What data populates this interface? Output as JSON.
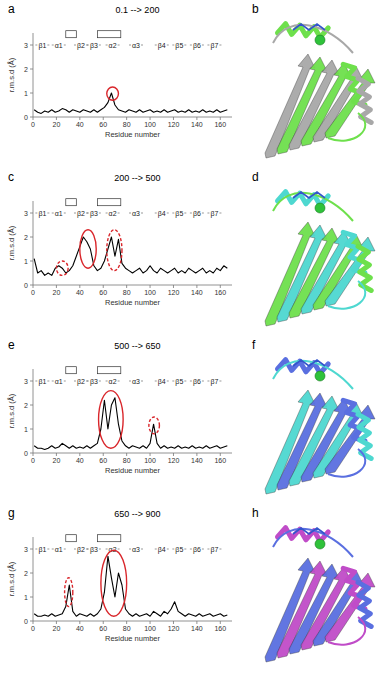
{
  "chart_data": [
    {
      "type": "line",
      "panel_label": "a",
      "title": "0.1 --> 200",
      "x_label": "Residue number",
      "y_label": "r.m.s.d (Å)",
      "color": "#000000",
      "grid": false,
      "xlim": [
        0,
        170
      ],
      "xticks": [
        0,
        20,
        40,
        60,
        80,
        100,
        120,
        140,
        160
      ],
      "ylim": [
        0,
        3.5
      ],
      "yticks": [
        0,
        1,
        2,
        3
      ],
      "x": [
        1,
        4,
        7,
        10,
        13,
        16,
        19,
        22,
        25,
        28,
        31,
        34,
        37,
        40,
        43,
        46,
        49,
        52,
        55,
        58,
        61,
        64,
        67,
        70,
        73,
        76,
        79,
        82,
        85,
        88,
        91,
        94,
        97,
        100,
        103,
        106,
        109,
        112,
        115,
        118,
        121,
        124,
        127,
        130,
        133,
        136,
        139,
        142,
        145,
        148,
        151,
        154,
        157,
        160,
        163,
        166
      ],
      "values": [
        0.3,
        0.2,
        0.15,
        0.25,
        0.2,
        0.3,
        0.2,
        0.25,
        0.35,
        0.3,
        0.2,
        0.3,
        0.25,
        0.2,
        0.3,
        0.25,
        0.2,
        0.3,
        0.2,
        0.3,
        0.4,
        0.6,
        1.0,
        0.5,
        0.3,
        0.25,
        0.2,
        0.3,
        0.25,
        0.2,
        0.3,
        0.2,
        0.25,
        0.3,
        0.2,
        0.25,
        0.2,
        0.3,
        0.2,
        0.25,
        0.3,
        0.2,
        0.25,
        0.2,
        0.3,
        0.2,
        0.25,
        0.2,
        0.3,
        0.2,
        0.25,
        0.2,
        0.3,
        0.2,
        0.25,
        0.3
      ],
      "annotations": [
        {
          "text": "β1",
          "x": 8,
          "y": 3
        },
        {
          "text": "α1",
          "x": 22,
          "y": 3
        },
        {
          "text": "β2",
          "x": 41,
          "y": 3
        },
        {
          "text": "β3",
          "x": 52,
          "y": 3
        },
        {
          "text": "α2",
          "x": 68,
          "y": 3
        },
        {
          "text": "α3",
          "x": 88,
          "y": 3
        },
        {
          "text": "β4",
          "x": 110,
          "y": 3
        },
        {
          "text": "β5",
          "x": 125,
          "y": 3
        },
        {
          "text": "β6",
          "x": 140,
          "y": 3
        },
        {
          "text": "β7",
          "x": 155,
          "y": 3
        }
      ],
      "boxes": [
        {
          "start": 28,
          "end": 37,
          "y": 3.45
        },
        {
          "start": 55,
          "end": 75,
          "y": 3.45
        }
      ],
      "highlights": [
        {
          "x_range": [
            63,
            73
          ],
          "y_range": [
            0.7,
            1.25
          ],
          "dashed": false
        }
      ]
    },
    {
      "type": "line",
      "panel_label": "c",
      "title": "200 --> 500",
      "x_label": "Residue number",
      "y_label": "r.m.s.d (Å)",
      "color": "#000000",
      "grid": false,
      "xlim": [
        0,
        170
      ],
      "xticks": [
        0,
        20,
        40,
        60,
        80,
        100,
        120,
        140,
        160
      ],
      "ylim": [
        0,
        3.5
      ],
      "yticks": [
        0,
        1,
        2,
        3
      ],
      "x": [
        1,
        4,
        7,
        10,
        13,
        16,
        19,
        22,
        25,
        28,
        31,
        34,
        37,
        40,
        43,
        46,
        49,
        52,
        55,
        58,
        61,
        64,
        67,
        70,
        73,
        76,
        79,
        82,
        85,
        88,
        91,
        94,
        97,
        100,
        103,
        106,
        109,
        112,
        115,
        118,
        121,
        124,
        127,
        130,
        133,
        136,
        139,
        142,
        145,
        148,
        151,
        154,
        157,
        160,
        163,
        166
      ],
      "values": [
        1.1,
        0.5,
        0.6,
        0.4,
        0.5,
        0.4,
        0.7,
        0.8,
        0.7,
        0.5,
        0.6,
        0.8,
        1.2,
        1.6,
        2.0,
        1.8,
        1.5,
        0.8,
        0.6,
        0.7,
        1.0,
        1.5,
        2.0,
        1.2,
        1.9,
        0.9,
        0.7,
        0.6,
        0.5,
        0.6,
        0.7,
        0.5,
        0.6,
        0.8,
        0.6,
        0.5,
        0.7,
        0.6,
        0.5,
        0.6,
        0.7,
        0.5,
        0.6,
        0.5,
        0.7,
        0.6,
        0.5,
        0.6,
        0.7,
        0.5,
        0.6,
        0.5,
        0.7,
        0.6,
        0.8,
        0.7
      ],
      "annotations": [
        {
          "text": "β1",
          "x": 8,
          "y": 3
        },
        {
          "text": "α1",
          "x": 22,
          "y": 3
        },
        {
          "text": "β2",
          "x": 41,
          "y": 3
        },
        {
          "text": "β3",
          "x": 52,
          "y": 3
        },
        {
          "text": "α2",
          "x": 68,
          "y": 3
        },
        {
          "text": "α3",
          "x": 88,
          "y": 3
        },
        {
          "text": "β4",
          "x": 110,
          "y": 3
        },
        {
          "text": "β5",
          "x": 125,
          "y": 3
        },
        {
          "text": "β6",
          "x": 140,
          "y": 3
        },
        {
          "text": "β7",
          "x": 155,
          "y": 3
        }
      ],
      "boxes": [
        {
          "start": 28,
          "end": 37,
          "y": 3.45
        },
        {
          "start": 55,
          "end": 75,
          "y": 3.45
        }
      ],
      "highlights": [
        {
          "x_range": [
            20,
            30
          ],
          "y_range": [
            0.4,
            1.0
          ],
          "dashed": true
        },
        {
          "x_range": [
            40,
            54
          ],
          "y_range": [
            0.7,
            2.3
          ],
          "dashed": false
        },
        {
          "x_range": [
            63,
            76
          ],
          "y_range": [
            0.6,
            2.3
          ],
          "dashed": true
        }
      ]
    },
    {
      "type": "line",
      "panel_label": "e",
      "title": "500 --> 650",
      "x_label": "Residue number",
      "y_label": "r.m.s.d (Å)",
      "color": "#000000",
      "grid": false,
      "xlim": [
        0,
        170
      ],
      "xticks": [
        0,
        20,
        40,
        60,
        80,
        100,
        120,
        140,
        160
      ],
      "ylim": [
        0,
        3.5
      ],
      "yticks": [
        0,
        1,
        2,
        3
      ],
      "x": [
        1,
        4,
        7,
        10,
        13,
        16,
        19,
        22,
        25,
        28,
        31,
        34,
        37,
        40,
        43,
        46,
        49,
        52,
        55,
        58,
        61,
        64,
        67,
        70,
        73,
        76,
        79,
        82,
        85,
        88,
        91,
        94,
        97,
        100,
        103,
        106,
        109,
        112,
        115,
        118,
        121,
        124,
        127,
        130,
        133,
        136,
        139,
        142,
        145,
        148,
        151,
        154,
        157,
        160,
        163,
        166
      ],
      "values": [
        0.3,
        0.2,
        0.2,
        0.15,
        0.2,
        0.3,
        0.2,
        0.25,
        0.4,
        0.3,
        0.2,
        0.3,
        0.2,
        0.25,
        0.2,
        0.3,
        0.2,
        0.3,
        0.4,
        1.0,
        2.2,
        1.0,
        2.0,
        2.3,
        1.2,
        0.5,
        0.3,
        0.2,
        0.3,
        0.25,
        0.2,
        0.3,
        0.2,
        0.4,
        1.2,
        0.4,
        0.2,
        0.3,
        0.2,
        0.25,
        0.2,
        0.3,
        0.2,
        0.25,
        0.2,
        0.3,
        0.2,
        0.25,
        0.2,
        0.3,
        0.2,
        0.25,
        0.3,
        0.2,
        0.25,
        0.3
      ],
      "annotations": [
        {
          "text": "β1",
          "x": 8,
          "y": 3
        },
        {
          "text": "α1",
          "x": 22,
          "y": 3
        },
        {
          "text": "β2",
          "x": 41,
          "y": 3
        },
        {
          "text": "β3",
          "x": 52,
          "y": 3
        },
        {
          "text": "α2",
          "x": 68,
          "y": 3
        },
        {
          "text": "α3",
          "x": 88,
          "y": 3
        },
        {
          "text": "β4",
          "x": 110,
          "y": 3
        },
        {
          "text": "β5",
          "x": 125,
          "y": 3
        },
        {
          "text": "β6",
          "x": 140,
          "y": 3
        },
        {
          "text": "β7",
          "x": 155,
          "y": 3
        }
      ],
      "boxes": [
        {
          "start": 28,
          "end": 37,
          "y": 3.45
        },
        {
          "start": 55,
          "end": 75,
          "y": 3.45
        }
      ],
      "highlights": [
        {
          "x_range": [
            56,
            77
          ],
          "y_range": [
            0.2,
            2.6
          ],
          "dashed": false
        },
        {
          "x_range": [
            99,
            108
          ],
          "y_range": [
            0.8,
            1.5
          ],
          "dashed": true
        }
      ]
    },
    {
      "type": "line",
      "panel_label": "g",
      "title": "650 --> 900",
      "x_label": "Residue number",
      "y_label": "r.m.s.d (Å)",
      "color": "#000000",
      "grid": false,
      "xlim": [
        0,
        170
      ],
      "xticks": [
        0,
        20,
        40,
        60,
        80,
        100,
        120,
        140,
        160
      ],
      "ylim": [
        0,
        3.5
      ],
      "yticks": [
        0,
        1,
        2,
        3
      ],
      "x": [
        1,
        4,
        7,
        10,
        13,
        16,
        19,
        22,
        25,
        28,
        31,
        34,
        37,
        40,
        43,
        46,
        49,
        52,
        55,
        58,
        61,
        64,
        67,
        70,
        73,
        76,
        79,
        82,
        85,
        88,
        91,
        94,
        97,
        100,
        103,
        106,
        109,
        112,
        115,
        118,
        121,
        124,
        127,
        130,
        133,
        136,
        139,
        142,
        145,
        148,
        151,
        154,
        157,
        160,
        163,
        166
      ],
      "values": [
        0.3,
        0.2,
        0.2,
        0.25,
        0.2,
        0.3,
        0.2,
        0.25,
        0.3,
        0.6,
        1.5,
        0.4,
        0.2,
        0.3,
        0.25,
        0.2,
        0.3,
        0.2,
        0.3,
        0.5,
        1.2,
        2.7,
        1.8,
        1.0,
        2.0,
        1.5,
        0.5,
        0.3,
        0.2,
        0.3,
        0.2,
        0.25,
        0.3,
        0.2,
        0.4,
        0.3,
        0.2,
        0.4,
        0.3,
        0.5,
        0.8,
        0.4,
        0.3,
        0.2,
        0.3,
        0.25,
        0.2,
        0.3,
        0.2,
        0.25,
        0.3,
        0.2,
        0.25,
        0.3,
        0.2,
        0.25
      ],
      "annotations": [
        {
          "text": "β1",
          "x": 8,
          "y": 3
        },
        {
          "text": "α1",
          "x": 22,
          "y": 3
        },
        {
          "text": "β2",
          "x": 41,
          "y": 3
        },
        {
          "text": "β3",
          "x": 52,
          "y": 3
        },
        {
          "text": "α2",
          "x": 68,
          "y": 3
        },
        {
          "text": "α3",
          "x": 88,
          "y": 3
        },
        {
          "text": "β4",
          "x": 110,
          "y": 3
        },
        {
          "text": "β5",
          "x": 125,
          "y": 3
        },
        {
          "text": "β6",
          "x": 140,
          "y": 3
        },
        {
          "text": "β7",
          "x": 155,
          "y": 3
        }
      ],
      "boxes": [
        {
          "start": 28,
          "end": 37,
          "y": 3.45
        },
        {
          "start": 55,
          "end": 75,
          "y": 3.45
        }
      ],
      "highlights": [
        {
          "x_range": [
            27,
            34
          ],
          "y_range": [
            0.6,
            1.8
          ],
          "dashed": true
        },
        {
          "x_range": [
            58,
            80
          ],
          "y_range": [
            0.2,
            2.95
          ],
          "dashed": false
        }
      ]
    }
  ],
  "structures": [
    {
      "label": "b",
      "colors": [
        "#a8a8a8",
        "#6ee04c"
      ]
    },
    {
      "label": "d",
      "colors": [
        "#6ee04c",
        "#4ed8d0"
      ]
    },
    {
      "label": "f",
      "colors": [
        "#4ed8d0",
        "#5a6fe0"
      ]
    },
    {
      "label": "h",
      "colors": [
        "#5a6fe0",
        "#c04cc8"
      ]
    }
  ]
}
